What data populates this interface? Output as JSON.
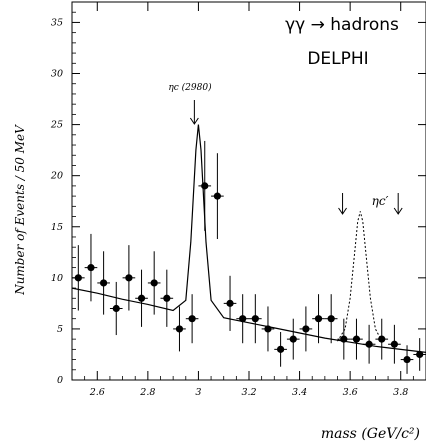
{
  "chart_data": {
    "type": "scatter",
    "ylabel": "Number of Events / 50 MeV",
    "xlabel": "mass (GeV/c²)",
    "xlim": [
      2.5,
      3.9
    ],
    "ylim": [
      0,
      37
    ],
    "xticks": [
      "2.6",
      "2.8",
      "3",
      "3.2",
      "3.4",
      "3.6",
      "3.8"
    ],
    "yticks": [
      "0",
      "5",
      "10",
      "15",
      "20",
      "25",
      "30",
      "35"
    ],
    "annotations": {
      "process": "γγ → hadrons",
      "experiment": "DELPHI",
      "etac": "ηc (2980)",
      "etac_prime": "ηc′"
    },
    "series": [
      {
        "x": [
          2.525,
          2.575,
          2.625,
          2.675,
          2.725,
          2.775,
          2.825,
          2.875,
          2.925,
          2.975,
          3.025,
          3.075,
          3.125,
          3.175,
          3.225,
          3.275,
          3.325,
          3.375,
          3.425,
          3.475,
          3.525,
          3.575,
          3.625,
          3.675,
          3.725,
          3.775,
          3.825,
          3.875
        ],
        "y": [
          10,
          11,
          9.5,
          7,
          10,
          8,
          9.5,
          8,
          5,
          6,
          19,
          18,
          7.5,
          6,
          6,
          5,
          3,
          4,
          5,
          6,
          6,
          4,
          4,
          3.5,
          4,
          3.5,
          2,
          2.5
        ],
        "yerr": [
          3.2,
          3.3,
          3.1,
          2.6,
          3.2,
          2.8,
          3.1,
          2.8,
          2.2,
          2.4,
          4.4,
          4.2,
          2.7,
          2.4,
          2.4,
          2.2,
          1.7,
          2.0,
          2.2,
          2.4,
          2.4,
          2.0,
          2.0,
          1.9,
          2.0,
          1.9,
          1.4,
          1.6
        ]
      }
    ],
    "fit_line": {
      "x": [
        2.5,
        2.6,
        2.7,
        2.8,
        2.9,
        2.95,
        2.97,
        2.99,
        3.0,
        3.01,
        3.03,
        3.05,
        3.1,
        3.2,
        3.3,
        3.4,
        3.5,
        3.6,
        3.7,
        3.8,
        3.9
      ],
      "y": [
        9.0,
        8.5,
        7.9,
        7.4,
        6.8,
        7.8,
        13.5,
        22.5,
        25.0,
        22.5,
        13.5,
        7.8,
        6.1,
        5.6,
        5.1,
        4.6,
        4.1,
        3.7,
        3.3,
        3.0,
        2.7
      ]
    },
    "dotted_peak": {
      "x": [
        3.55,
        3.58,
        3.6,
        3.62,
        3.63,
        3.64,
        3.65,
        3.66,
        3.68,
        3.7,
        3.73
      ],
      "y": [
        3.8,
        5.0,
        8.0,
        13.0,
        15.5,
        16.5,
        15.5,
        13.0,
        8.0,
        5.0,
        3.6
      ]
    },
    "arrows_x": [
      2.98,
      3.57,
      3.79
    ]
  }
}
